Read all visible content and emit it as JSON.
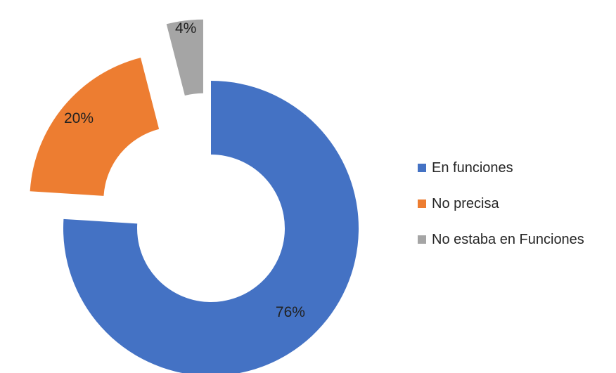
{
  "chart_data": {
    "type": "pie",
    "subtype": "doughnut-exploded",
    "title": "",
    "slices": [
      {
        "name": "En funciones",
        "value": 76,
        "label": "76%",
        "color": "#4472C4"
      },
      {
        "name": "No precisa",
        "value": 20,
        "label": "20%",
        "color": "#ED7D31"
      },
      {
        "name": "No estaba en Funciones",
        "value": 4,
        "label": "4%",
        "color": "#A5A5A5"
      }
    ],
    "legend_position": "right"
  }
}
